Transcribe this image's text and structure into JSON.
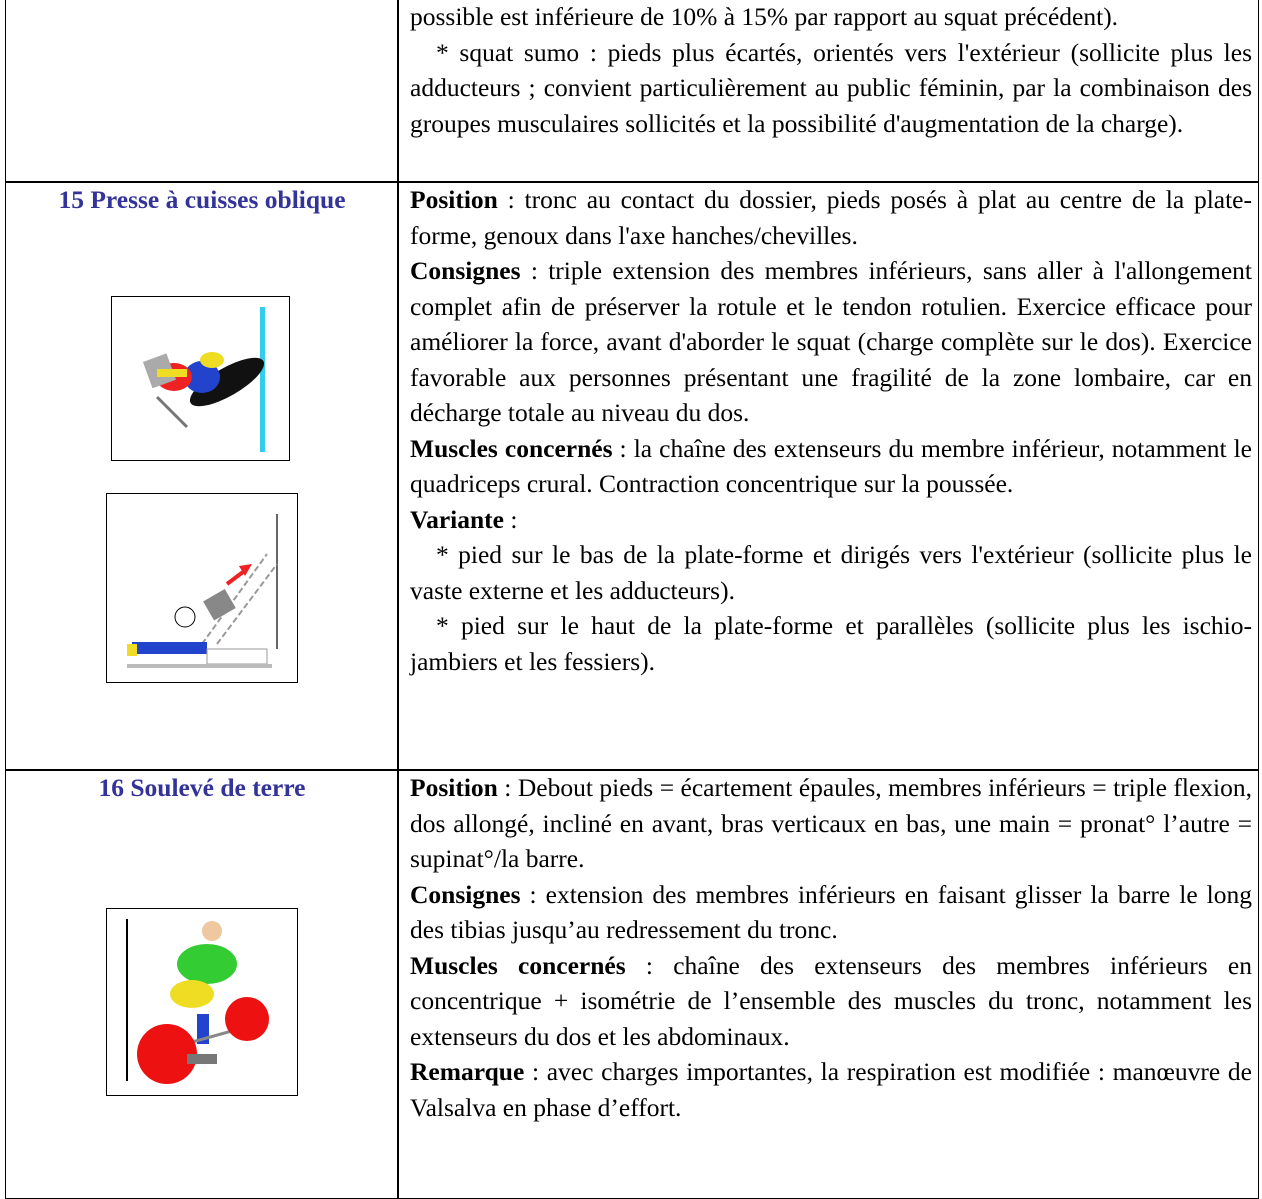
{
  "table": {
    "rows": [
      {
        "paragraphs": [
          {
            "text": "possible est inférieure de 10% à 15% par rapport au squat précédent)."
          },
          {
            "indent": true,
            "text": "* squat sumo : pieds plus écartés, orientés vers l'extérieur (sollicite plus les adducteurs ; convient particulièrement au public féminin, par la combinaison des groupes musculaires sollicités et la possibilité d'augmentation de la charge)."
          }
        ]
      },
      {
        "title": "15 Presse à cuisses oblique",
        "paragraphs": [
          {
            "label": "Position",
            "text": " : tronc au contact du dossier, pieds posés à plat au centre de la plate-forme, genoux dans l'axe hanches/chevilles."
          },
          {
            "label": "Consignes",
            "text": " : triple extension des membres inférieurs, sans aller à l'allongement complet afin de préserver la rotule et le tendon rotulien. Exercice efficace pour améliorer la force, avant d'aborder le squat (charge complète sur le dos). Exercice favorable aux personnes présentant une fragilité de la zone lombaire, car en décharge totale au niveau du dos."
          },
          {
            "label": "Muscles concernés",
            "text": " : la chaîne des extenseurs du membre inférieur, notamment le quadriceps crural. Contraction concentrique sur la poussée."
          },
          {
            "label": "Variante",
            "text": " :"
          },
          {
            "indent": true,
            "text": "* pied sur le bas de la plate-forme et dirigés vers l'extérieur (sollicite plus le vaste externe et les adducteurs)."
          },
          {
            "indent": true,
            "text": "* pied sur le haut de la plate-forme et parallèles (sollicite plus les ischio-jambiers et les fessiers)."
          }
        ]
      },
      {
        "title": "16 Soulevé de terre",
        "paragraphs": [
          {
            "label": "Position",
            "text": " : Debout pieds = écartement épaules, membres inférieurs = triple flexion, dos allongé, incliné en avant, bras verticaux en bas, une main = pronat° l’autre = supinat°/la barre."
          },
          {
            "label": "Consignes",
            "text": " : extension des membres inférieurs en faisant glisser la barre le long des tibias jusqu’au redressement du tronc."
          },
          {
            "label": "Muscles concernés",
            "text": " : chaîne des extenseurs des membres inférieurs en concentrique + isométrie de l’ensemble des muscles du tronc, notamment les extenseurs du dos et les abdominaux."
          },
          {
            "label": "Remarque",
            "text": " : avec charges importantes, la respiration est modifiée : manœuvre de Valsalva en phase d’effort."
          }
        ]
      }
    ]
  }
}
